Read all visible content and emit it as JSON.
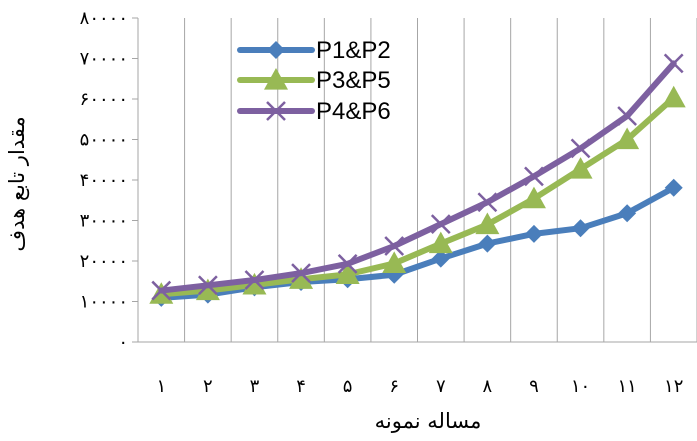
{
  "chart_data": {
    "type": "line",
    "title": "",
    "xlabel": "مساله نمونه",
    "ylabel": "مقدار تابع هدف",
    "x": [
      1,
      2,
      3,
      4,
      5,
      6,
      7,
      8,
      9,
      10,
      11,
      12
    ],
    "x_tick_labels": [
      "۱",
      "۲",
      "۳",
      "۴",
      "۵",
      "۶",
      "۷",
      "۸",
      "۹",
      "۱۰",
      "۱۱",
      "۱۲"
    ],
    "y_tick_values": [
      0,
      10000,
      20000,
      30000,
      40000,
      50000,
      60000,
      70000,
      80000
    ],
    "y_tick_labels": [
      "۰",
      "۱۰۰۰۰",
      "۲۰۰۰۰",
      "۳۰۰۰۰",
      "۴۰۰۰۰",
      "۵۰۰۰۰",
      "۶۰۰۰۰",
      "۷۰۰۰۰",
      "۸۰۰۰۰"
    ],
    "ylim": [
      0,
      80000
    ],
    "grid": "vertical-lines",
    "legend_position": "top-left",
    "series": [
      {
        "name": "P1&P2",
        "color": "#4a7ebb",
        "marker": "diamond",
        "values": [
          10900,
          11700,
          13500,
          14800,
          15500,
          16600,
          20600,
          24300,
          26700,
          28100,
          31800,
          38100
        ]
      },
      {
        "name": "P3&P5",
        "color": "#98b954",
        "marker": "triangle",
        "values": [
          11800,
          12700,
          14100,
          15500,
          16700,
          19400,
          24300,
          29000,
          35400,
          42700,
          50000,
          60300
        ]
      },
      {
        "name": "P4&P6",
        "color": "#7d60a0",
        "marker": "x",
        "values": [
          12700,
          14000,
          15300,
          17000,
          19300,
          23700,
          29100,
          34500,
          40900,
          47800,
          55800,
          68800
        ]
      }
    ]
  }
}
